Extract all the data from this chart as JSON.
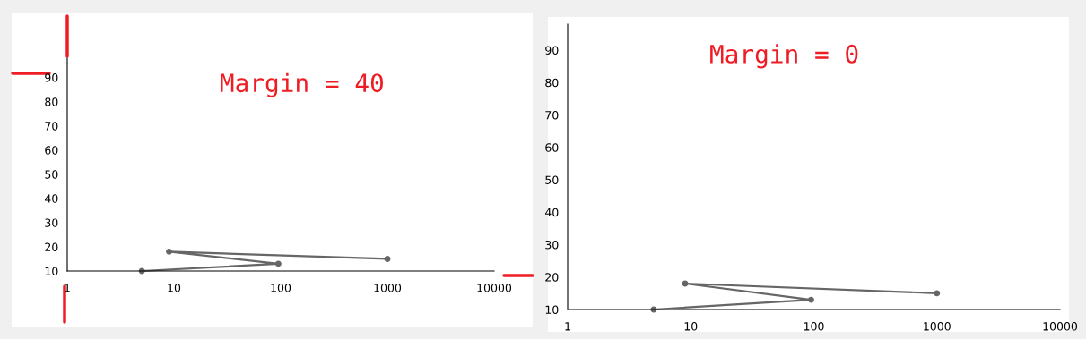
{
  "chart_data": [
    {
      "type": "line",
      "title": "Margin = 40",
      "log": "x",
      "x": [
        5,
        95,
        9,
        1000
      ],
      "values": [
        10,
        13,
        18,
        15
      ],
      "color": "#666666",
      "marker": "circle",
      "line_style": "solid",
      "xlim": [
        1,
        10000
      ],
      "xticks": [
        1,
        10,
        100,
        1000,
        10000
      ],
      "ylim": [
        10,
        98
      ],
      "yticks": [
        10,
        20,
        30,
        40,
        50,
        60,
        70,
        80,
        90
      ],
      "grid": false,
      "legend": false
    },
    {
      "type": "line",
      "title": "Margin = 0",
      "log": "x",
      "x": [
        5,
        95,
        9,
        1000
      ],
      "values": [
        10,
        13,
        18,
        15
      ],
      "color": "#666666",
      "marker": "circle",
      "line_style": "solid",
      "xlim": [
        1,
        10000
      ],
      "xticks": [
        1,
        10,
        100,
        1000,
        10000
      ],
      "ylim": [
        10,
        98
      ],
      "yticks": [
        10,
        20,
        30,
        40,
        50,
        60,
        70,
        80,
        90
      ],
      "grid": false,
      "legend": false
    }
  ]
}
